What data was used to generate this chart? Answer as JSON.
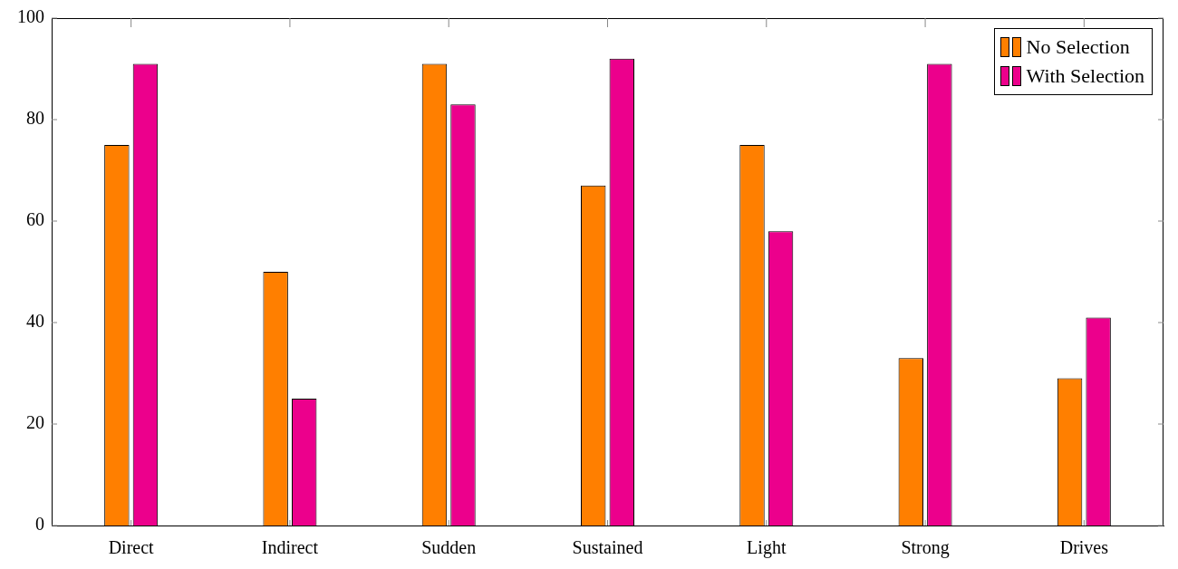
{
  "chart_data": {
    "type": "bar",
    "categories": [
      "Direct",
      "Indirect",
      "Sudden",
      "Sustained",
      "Light",
      "Strong",
      "Drives"
    ],
    "series": [
      {
        "name": "No Selection",
        "color": "#ff7f00",
        "values": [
          75,
          50,
          91,
          67,
          75,
          33,
          29
        ]
      },
      {
        "name": "With Selection",
        "color": "#ec008c",
        "values": [
          91,
          25,
          83,
          92,
          58,
          91,
          41
        ]
      }
    ],
    "ylim": [
      0,
      100
    ],
    "yticks": [
      0,
      20,
      40,
      60,
      80,
      100
    ],
    "grid": false,
    "legend": "top right"
  }
}
